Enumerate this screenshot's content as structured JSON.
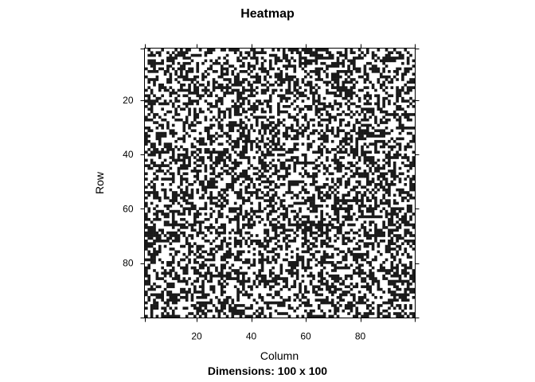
{
  "chart_data": {
    "type": "heatmap",
    "title": "Heatmap",
    "subtitle": "Dimensions: 100 x 100",
    "xlabel": "Column",
    "ylabel": "Row",
    "rows": 100,
    "cols": 100,
    "xlim": [
      1,
      100
    ],
    "ylim": [
      1,
      100
    ],
    "y_reversed": true,
    "x_ticks": [
      20,
      40,
      60,
      80
    ],
    "y_ticks": [
      20,
      40,
      60,
      80
    ],
    "value_levels": [
      "empty",
      "filled"
    ],
    "fill_fraction": 0.45,
    "colors": {
      "filled": "#1a1a1a",
      "empty": "#ffffff",
      "frame": "#000000"
    }
  }
}
